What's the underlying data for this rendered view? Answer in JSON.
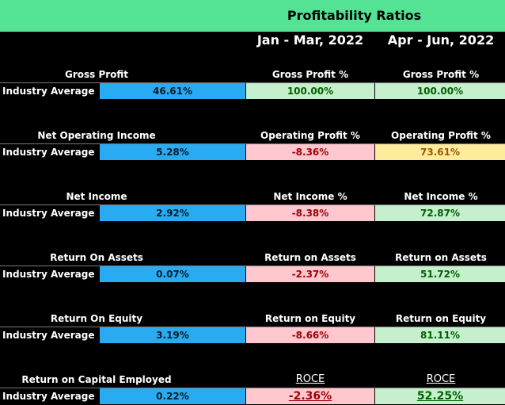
{
  "header": {
    "title": "Profitability Ratios",
    "periods": [
      "Jan - Mar, 2022",
      "Apr - Jun, 2022"
    ]
  },
  "row_label": "Industry Average",
  "colors": {
    "header_bg": "#54e394",
    "industry_bg": "#29abf2",
    "positive_bg": "#c6efce",
    "positive_text": "#006100",
    "negative_bg": "#ffc7ce",
    "negative_text": "#9c0006",
    "neutral_bg": "#ffeb9c",
    "neutral_text": "#9c5700"
  },
  "sections": [
    {
      "title": "Gross Profit",
      "industry_average": "46.61%",
      "col1_header": "Gross Profit %",
      "col2_header": "Gross Profit %",
      "col1_value": "100.00%",
      "col2_value": "100.00%"
    },
    {
      "title": "Net Operating Income",
      "industry_average": "5.28%",
      "col1_header": "Operating Profit %",
      "col2_header": "Operating Profit %",
      "col1_value": "-8.36%",
      "col2_value": "73.61%"
    },
    {
      "title": "Net Income",
      "industry_average": "2.92%",
      "col1_header": "Net Income %",
      "col2_header": "Net Income %",
      "col1_value": "-8.38%",
      "col2_value": "72.87%"
    },
    {
      "title": "Return On Assets",
      "industry_average": "0.07%",
      "col1_header": "Return on Assets",
      "col2_header": "Return on Assets",
      "col1_value": "-2.37%",
      "col2_value": "51.72%"
    },
    {
      "title": "Return On Equity",
      "industry_average": "3.19%",
      "col1_header": "Return on Equity",
      "col2_header": "Return on Equity",
      "col1_value": "-8.66%",
      "col2_value": "81.11%"
    },
    {
      "title": "Return on Capital Employed",
      "industry_average": "0.22%",
      "col1_header": "ROCE",
      "col2_header": "ROCE",
      "col1_value": "-2.36%",
      "col2_value": "52.25%"
    }
  ]
}
